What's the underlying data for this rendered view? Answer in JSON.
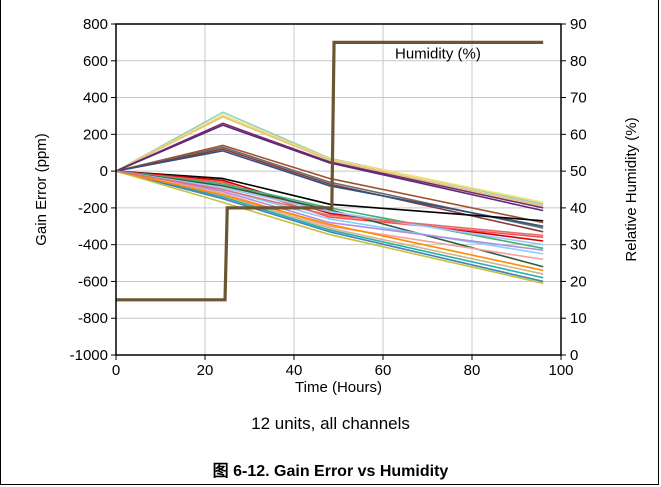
{
  "chart_data": {
    "type": "line",
    "subtitle": "12 units, all channels",
    "caption": "图 6-12. Gain Error vs Humidity",
    "xlabel": "Time (Hours)",
    "ylabel": "Gain Error (ppm)",
    "y2label": "Relative Humidity (%)",
    "xlim": [
      0,
      100
    ],
    "ylim": [
      -1000,
      800
    ],
    "y2lim": [
      0,
      90
    ],
    "xticks": [
      "0",
      "20",
      "40",
      "60",
      "80",
      "100"
    ],
    "yticks": [
      "800",
      "600",
      "400",
      "200",
      "0",
      "-200",
      "-400",
      "-600",
      "-800",
      "-1000"
    ],
    "y2ticks": [
      "90",
      "80",
      "70",
      "60",
      "50",
      "40",
      "30",
      "20",
      "10",
      "0"
    ],
    "grid": true,
    "humidity_series": {
      "name": "Humidity (%)",
      "color": "#6b5533",
      "x": [
        0,
        24.5,
        25,
        48.5,
        49,
        96
      ],
      "y": [
        15,
        15,
        40,
        40,
        85,
        85
      ]
    },
    "gain_series": {
      "x": [
        0,
        24,
        48,
        96
      ],
      "lines": [
        {
          "color": "#8fd3c0",
          "y": [
            0,
            320,
            70,
            -180
          ]
        },
        {
          "color": "#f5e06a",
          "y": [
            0,
            305,
            65,
            -170
          ]
        },
        {
          "color": "#e8c27a",
          "y": [
            0,
            295,
            60,
            -190
          ]
        },
        {
          "color": "#7a2a6a",
          "y": [
            0,
            260,
            50,
            -200
          ]
        },
        {
          "color": "#5a2a7a",
          "y": [
            0,
            250,
            45,
            -215
          ]
        },
        {
          "color": "#a0522d",
          "y": [
            0,
            140,
            -40,
            -280
          ]
        },
        {
          "color": "#6a6a6a",
          "y": [
            0,
            130,
            -60,
            -310
          ]
        },
        {
          "color": "#8b3a3a",
          "y": [
            0,
            120,
            -70,
            -330
          ]
        },
        {
          "color": "#2f4f7f",
          "y": [
            0,
            110,
            -80,
            -300
          ]
        },
        {
          "color": "#000000",
          "y": [
            0,
            -40,
            -180,
            -270
          ]
        },
        {
          "color": "#cc0000",
          "y": [
            0,
            -50,
            -230,
            -380
          ]
        },
        {
          "color": "#ff5050",
          "y": [
            0,
            -60,
            -250,
            -360
          ]
        },
        {
          "color": "#3cb371",
          "y": [
            0,
            -70,
            -200,
            -420
          ]
        },
        {
          "color": "#2e5e3e",
          "y": [
            0,
            -80,
            -210,
            -520
          ]
        },
        {
          "color": "#a0c4ff",
          "y": [
            0,
            -90,
            -220,
            -400
          ]
        },
        {
          "color": "#87cefa",
          "y": [
            0,
            -100,
            -260,
            -450
          ]
        },
        {
          "color": "#b08ee0",
          "y": [
            0,
            -110,
            -280,
            -430
          ]
        },
        {
          "color": "#f4a0a0",
          "y": [
            0,
            -120,
            -300,
            -480
          ]
        },
        {
          "color": "#d2b48c",
          "y": [
            0,
            -130,
            -310,
            -560
          ]
        },
        {
          "color": "#20b2aa",
          "y": [
            0,
            -140,
            -320,
            -580
          ]
        },
        {
          "color": "#4682b4",
          "y": [
            0,
            -150,
            -330,
            -600
          ]
        },
        {
          "color": "#c8c040",
          "y": [
            0,
            -170,
            -345,
            -610
          ]
        },
        {
          "color": "#ff8c00",
          "y": [
            0,
            -130,
            -290,
            -540
          ]
        },
        {
          "color": "#e07070",
          "y": [
            0,
            -100,
            -240,
            -350
          ]
        }
      ]
    }
  }
}
